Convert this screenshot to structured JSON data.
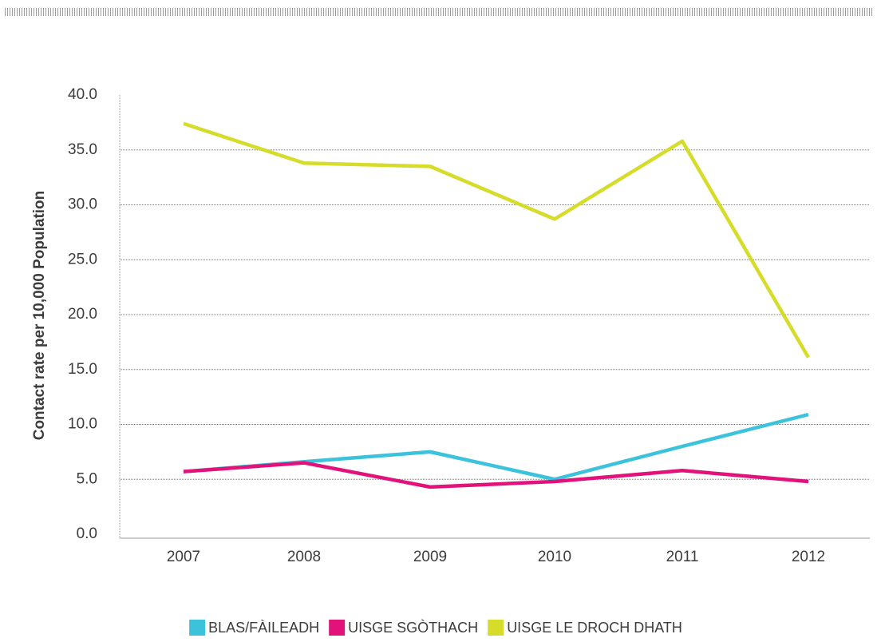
{
  "chart_data": {
    "type": "line",
    "y_label": "Contact rate per 10,000 Population",
    "categories": [
      "2007",
      "2008",
      "2009",
      "2010",
      "2011",
      "2012"
    ],
    "series": [
      {
        "name": "BLAS/FÀILEADH",
        "color": "#3cc3db",
        "values": [
          5.7,
          6.6,
          7.5,
          5.0,
          8.0,
          10.9
        ]
      },
      {
        "name": "UISGE SGÒTHACH",
        "color": "#e2127a",
        "values": [
          5.7,
          6.5,
          4.3,
          4.8,
          5.8,
          4.8
        ]
      },
      {
        "name": "UISGE LE DROCH DHATH",
        "color": "#d5dc29",
        "values": [
          37.4,
          33.8,
          33.5,
          28.7,
          35.8,
          16.1
        ]
      }
    ],
    "ylim": [
      0,
      40
    ],
    "yticks": [
      {
        "value": 0,
        "label": "0.0"
      },
      {
        "value": 5,
        "label": "5.0"
      },
      {
        "value": 10,
        "label": "10.0"
      },
      {
        "value": 15,
        "label": "15.0"
      },
      {
        "value": 20,
        "label": "20.0"
      },
      {
        "value": 25,
        "label": "25.0"
      },
      {
        "value": 30,
        "label": "30.0"
      },
      {
        "value": 35,
        "label": "35.0"
      },
      {
        "value": 40,
        "label": "40.0"
      }
    ],
    "grid": true,
    "legend": "bottom"
  }
}
